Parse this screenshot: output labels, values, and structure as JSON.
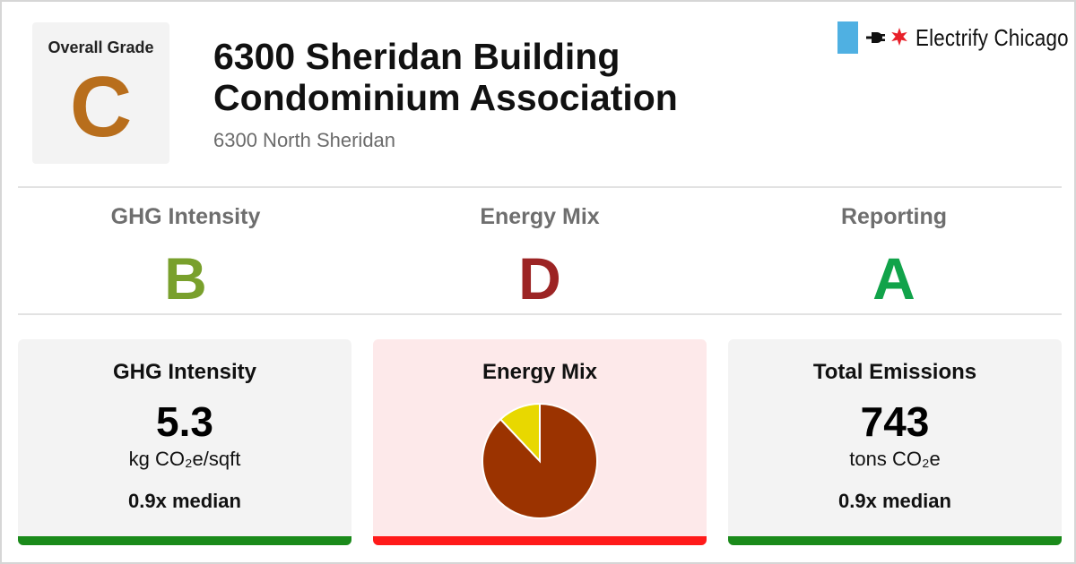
{
  "overall": {
    "label": "Overall Grade",
    "grade": "C",
    "color": "#b86e1c"
  },
  "building": {
    "name": "6300 Sheridan Building Condominium Association",
    "address": "6300 North Sheridan"
  },
  "brand": {
    "name": "Electrify Chicago",
    "flag_color": "#4fb0e2",
    "star_color": "#e8202a"
  },
  "subgrades": [
    {
      "label": "GHG Intensity",
      "grade": "B",
      "color": "#79a02c"
    },
    {
      "label": "Energy Mix",
      "grade": "D",
      "color": "#9c2424"
    },
    {
      "label": "Reporting",
      "grade": "A",
      "color": "#11a34a"
    }
  ],
  "cards": {
    "ghg": {
      "title": "GHG Intensity",
      "value": "5.3",
      "unit": "kg CO₂e/sqft",
      "median": "0.9x median",
      "bar_color": "#1a8a1a",
      "bg": "#f3f3f3"
    },
    "mix": {
      "title": "Energy Mix",
      "bar_color": "#ff1a1a",
      "bg": "#fde9ea"
    },
    "total": {
      "title": "Total Emissions",
      "value": "743",
      "unit": "tons CO₂e",
      "median": "0.9x median",
      "bar_color": "#1a8a1a",
      "bg": "#f3f3f3"
    }
  },
  "chart_data": {
    "type": "pie",
    "slices": [
      {
        "value": 88,
        "color": "#9b3300"
      },
      {
        "value": 12,
        "color": "#e8d800"
      }
    ]
  }
}
